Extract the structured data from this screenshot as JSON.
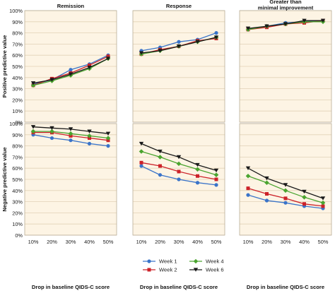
{
  "chart_data": {
    "type": "line",
    "xlabel": "Drop in baseline QIDS-C score",
    "x": [
      "10%",
      "20%",
      "30%",
      "40%",
      "50%"
    ],
    "row_labels": [
      "Positive predictive value",
      "Negative predictive value"
    ],
    "column_titles": [
      "Remission",
      "Response",
      "Greater than\nminimal improvement"
    ],
    "ylim": [
      0,
      100
    ],
    "yticks": [
      "0%",
      "10%",
      "20%",
      "30%",
      "40%",
      "50%",
      "60%",
      "70%",
      "80%",
      "90%",
      "100%"
    ],
    "grid": true,
    "legend": {
      "placement": "bottom-right",
      "entries": [
        "Week 1",
        "Week 2",
        "Week 4",
        "Week 6"
      ]
    },
    "colors": {
      "panel_bg": "#fdf4e4",
      "grid": "#e2d2b6",
      "Week 1": "#3a74c9",
      "Week 2": "#cc2229",
      "Week 4": "#4aa42f",
      "Week 6": "#1a1a1a"
    },
    "panels": [
      {
        "row": "Positive predictive value",
        "column": "Remission",
        "series": [
          {
            "name": "Week 1",
            "values": [
              34,
              38,
              47,
              52,
              60
            ]
          },
          {
            "name": "Week 2",
            "values": [
              33,
              39,
              44,
              51,
              59
            ]
          },
          {
            "name": "Week 4",
            "values": [
              33,
              37,
              42,
              48,
              57
            ]
          },
          {
            "name": "Week 6",
            "values": [
              35,
              38,
              43,
              49,
              57
            ]
          }
        ]
      },
      {
        "row": "Positive predictive value",
        "column": "Response",
        "series": [
          {
            "name": "Week 1",
            "values": [
              64,
              67,
              72,
              74,
              80
            ]
          },
          {
            "name": "Week 2",
            "values": [
              61,
              65,
              68,
              73,
              75
            ]
          },
          {
            "name": "Week 4",
            "values": [
              61,
              64,
              68,
              72,
              76
            ]
          },
          {
            "name": "Week 6",
            "values": [
              62,
              64,
              68,
              72,
              76
            ]
          }
        ]
      },
      {
        "row": "Positive predictive value",
        "column": "Greater than\nminimal improvement",
        "series": [
          {
            "name": "Week 1",
            "values": [
              83,
              86,
              89,
              90,
              91
            ]
          },
          {
            "name": "Week 2",
            "values": [
              83,
              85,
              88,
              89,
              91
            ]
          },
          {
            "name": "Week 4",
            "values": [
              83,
              86,
              88,
              90,
              90
            ]
          },
          {
            "name": "Week 6",
            "values": [
              84,
              86,
              88,
              91,
              91
            ]
          }
        ]
      },
      {
        "row": "Negative predictive value",
        "column": "Remission",
        "series": [
          {
            "name": "Week 1",
            "values": [
              90,
              87,
              85,
              82,
              80
            ]
          },
          {
            "name": "Week 2",
            "values": [
              92,
              92,
              89,
              87,
              85
            ]
          },
          {
            "name": "Week 4",
            "values": [
              93,
              93,
              91,
              89,
              87
            ]
          },
          {
            "name": "Week 6",
            "values": [
              97,
              96,
              95,
              93,
              91
            ]
          }
        ]
      },
      {
        "row": "Negative predictive value",
        "column": "Response",
        "series": [
          {
            "name": "Week 1",
            "values": [
              62,
              54,
              50,
              47,
              45
            ]
          },
          {
            "name": "Week 2",
            "values": [
              65,
              62,
              57,
              53,
              50
            ]
          },
          {
            "name": "Week 4",
            "values": [
              75,
              70,
              64,
              59,
              54
            ]
          },
          {
            "name": "Week 6",
            "values": [
              82,
              75,
              70,
              63,
              58
            ]
          }
        ]
      },
      {
        "row": "Negative predictive value",
        "column": "Greater than\nminimal improvement",
        "series": [
          {
            "name": "Week 1",
            "values": [
              36,
              31,
              29,
              26,
              24
            ]
          },
          {
            "name": "Week 2",
            "values": [
              42,
              37,
              33,
              28,
              26
            ]
          },
          {
            "name": "Week 4",
            "values": [
              53,
              47,
              40,
              34,
              29
            ]
          },
          {
            "name": "Week 6",
            "values": [
              60,
              51,
              45,
              39,
              33
            ]
          }
        ]
      }
    ]
  }
}
